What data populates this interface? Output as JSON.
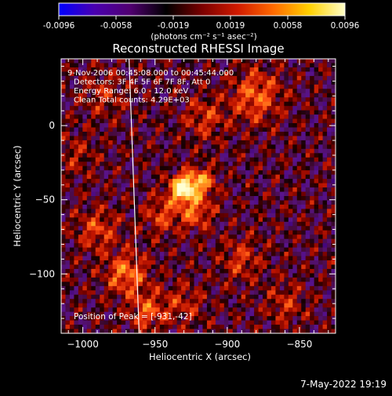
{
  "colorbar": {
    "ticks": [
      "-0.0096",
      "-0.0058",
      "-0.0019",
      "0.0019",
      "0.0058",
      "0.0096"
    ],
    "units": "(photons cm⁻² s⁻¹ asec⁻²)",
    "stops": [
      "#0000ff",
      "#4a00b0",
      "#500070",
      "#000000",
      "#7a0000",
      "#d01a00",
      "#ff6a00",
      "#ffd000",
      "#ffffc8"
    ]
  },
  "chart_data": {
    "type": "heatmap",
    "title": "Reconstructed RHESSI Image",
    "xlabel": "Heliocentric X (arcsec)",
    "ylabel": "Heliocentric Y (arcsec)",
    "xlim": [
      -1015,
      -825
    ],
    "ylim": [
      -140,
      45
    ],
    "x_ticks": [
      {
        "value": -1000,
        "label": "−1000"
      },
      {
        "value": -950,
        "label": "−950"
      },
      {
        "value": -900,
        "label": "−900"
      },
      {
        "value": -850,
        "label": "−850"
      }
    ],
    "y_ticks": [
      {
        "value": 0,
        "label": "0"
      },
      {
        "value": -50,
        "label": "−50"
      },
      {
        "value": -100,
        "label": "−100"
      }
    ],
    "annotations": [
      "9-Nov-2006 00:45:08.000 to 00:45:44.000",
      "Detectors: 3F 4F 5F 6F 7F 8F, Att 0",
      "Energy Range: 6.0 - 12.0 keV",
      "Clean     Total counts: 4.29E+03"
    ],
    "peak_label": "Position of Peak = [-931,-42]",
    "peak": {
      "x": -931,
      "y": -42
    },
    "limb_line": [
      {
        "x": -968,
        "y": 45
      },
      {
        "x": -961,
        "y": -140
      }
    ],
    "sources": [
      {
        "x": -931,
        "y": -42,
        "amp": 1.0,
        "r": 6
      },
      {
        "x": -918,
        "y": -38,
        "amp": 0.55,
        "r": 7
      },
      {
        "x": -922,
        "y": -58,
        "amp": 0.45,
        "r": 8
      },
      {
        "x": -945,
        "y": -60,
        "amp": 0.35,
        "r": 9
      },
      {
        "x": -970,
        "y": -100,
        "amp": 0.5,
        "r": 10
      },
      {
        "x": -955,
        "y": -125,
        "amp": 0.4,
        "r": 9
      },
      {
        "x": -990,
        "y": -70,
        "amp": 0.35,
        "r": 10
      },
      {
        "x": -880,
        "y": 20,
        "amp": 0.45,
        "r": 12
      },
      {
        "x": -915,
        "y": 5,
        "amp": 0.3,
        "r": 10
      },
      {
        "x": -890,
        "y": -90,
        "amp": 0.3,
        "r": 10
      },
      {
        "x": -860,
        "y": -120,
        "amp": 0.25,
        "r": 10
      },
      {
        "x": -930,
        "y": -120,
        "amp": 0.25,
        "r": 10
      },
      {
        "x": -985,
        "y": 20,
        "amp": 0.25,
        "r": 10
      },
      {
        "x": -1005,
        "y": -20,
        "amp": 0.2,
        "r": 10
      }
    ]
  },
  "footer": {
    "timestamp": "7-May-2022 19:19"
  }
}
